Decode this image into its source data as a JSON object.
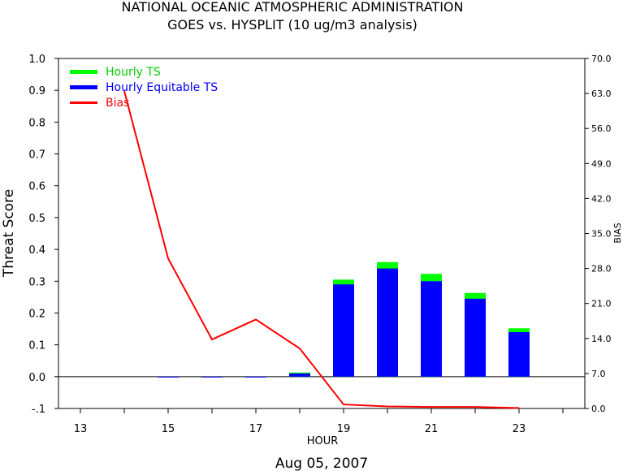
{
  "chart_data": {
    "type": "bar",
    "title": "NATIONAL OCEANIC ATMOSPHERIC ADMINISTRATION",
    "subtitle": "GOES vs. HYSPLIT  (10 ug/m3 analysis)",
    "xlabel": "HOUR",
    "ylabel": "Threat Score",
    "y2label": "BIAS",
    "date_label": "Aug 05, 2007",
    "x_ticks": [
      "13",
      "15",
      "17",
      "19",
      "21",
      "23"
    ],
    "y_ticks": [
      "1.0",
      "0.9",
      "0.8",
      "0.7",
      "0.6",
      "0.5",
      "0.4",
      "0.3",
      "0.2",
      "0.1",
      "0.0",
      "-.1"
    ],
    "y2_ticks": [
      "70.0",
      "63.0",
      "56.0",
      "49.0",
      "42.0",
      "35.0",
      "28.0",
      "21.0",
      "14.0",
      "7.0",
      "0.0"
    ],
    "xlim": [
      12.5,
      24.5
    ],
    "ylim": [
      -0.1,
      1.0
    ],
    "y2lim": [
      0,
      70
    ],
    "hours": [
      15,
      16,
      17,
      18,
      19,
      20,
      21,
      22,
      23
    ],
    "series": [
      {
        "name": "Hourly TS",
        "color": "#00ff00",
        "axis": "left",
        "kind": "bar",
        "values": [
          0.0,
          0.0,
          0.0,
          0.013,
          0.305,
          0.36,
          0.323,
          0.263,
          0.152
        ]
      },
      {
        "name": "Hourly Equitable TS",
        "color": "#0000ff",
        "axis": "left",
        "kind": "bar",
        "values": [
          0.0,
          0.0,
          0.0,
          0.01,
          0.29,
          0.34,
          0.3,
          0.245,
          0.14
        ]
      },
      {
        "name": "Bias",
        "color": "#ff0000",
        "axis": "right",
        "kind": "line",
        "x": [
          14,
          15,
          16,
          17,
          18,
          19,
          20,
          21,
          22,
          23
        ],
        "values": [
          63.5,
          30.0,
          13.8,
          17.8,
          12.0,
          0.8,
          0.4,
          0.3,
          0.3,
          0.1
        ]
      }
    ],
    "grid": false,
    "legend_position": "top-left"
  }
}
